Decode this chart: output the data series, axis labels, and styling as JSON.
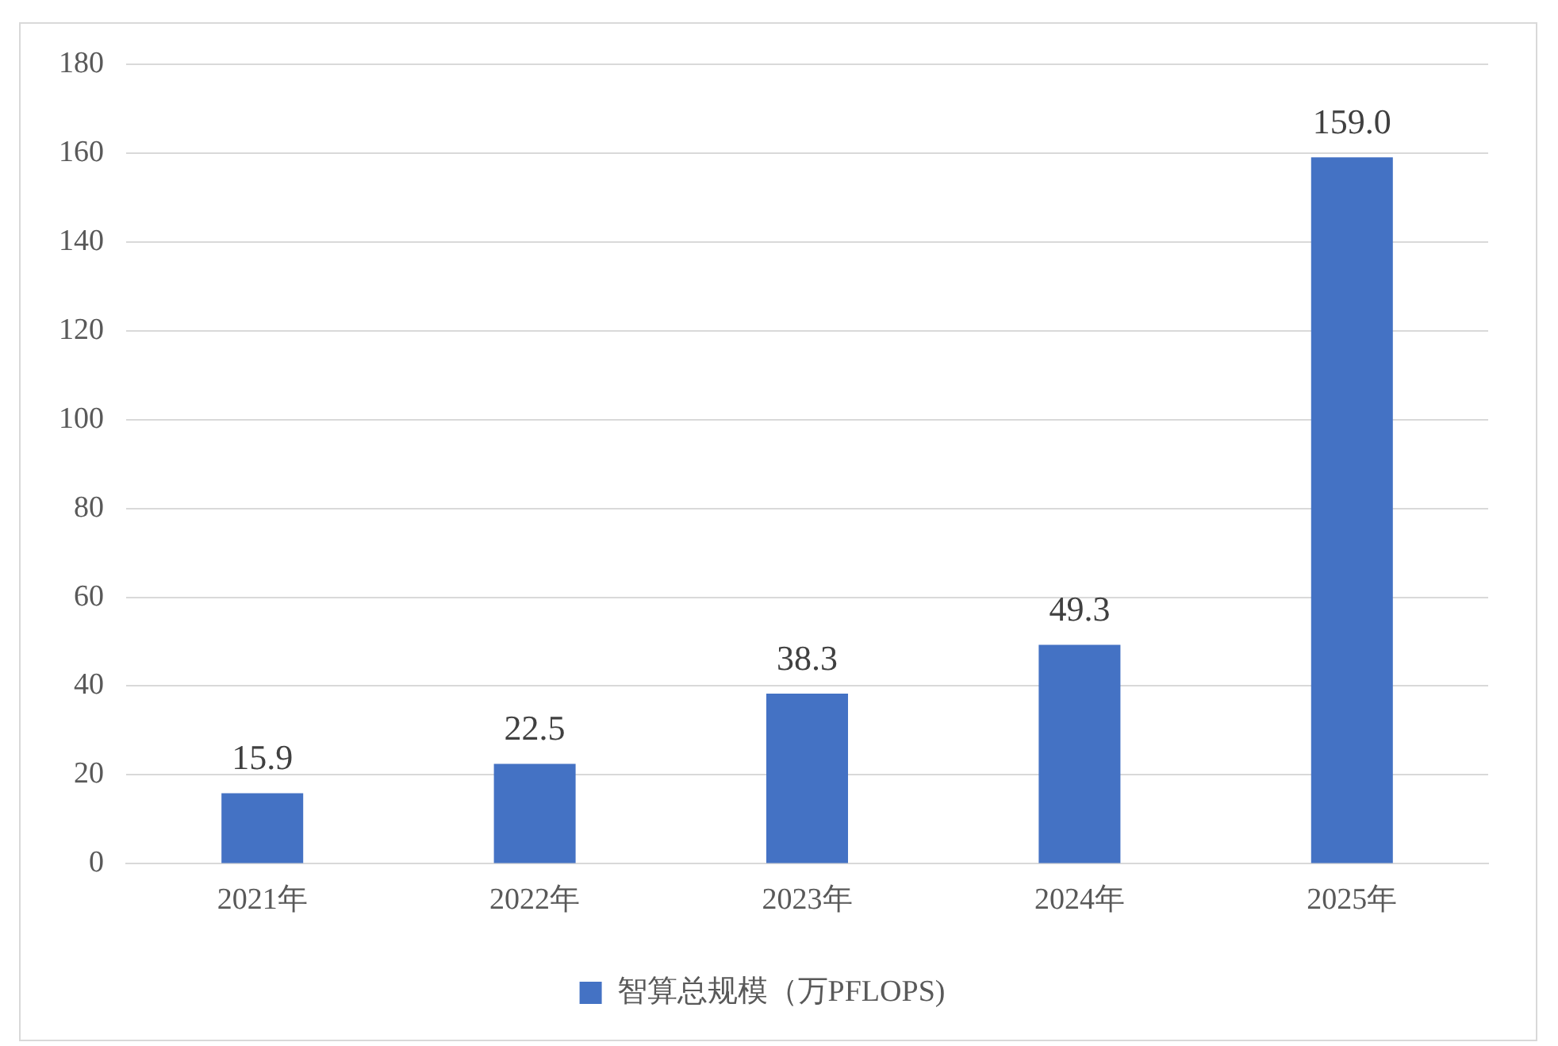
{
  "chart_data": {
    "type": "bar",
    "categories": [
      "2021年",
      "2022年",
      "2023年",
      "2024年",
      "2025年"
    ],
    "series": [
      {
        "name": "智算总规模（万PFLOPS)",
        "color": "#4472c4",
        "values": [
          15.9,
          22.5,
          38.3,
          49.3,
          159.0
        ]
      }
    ],
    "value_labels": [
      "15.9",
      "22.5",
      "38.3",
      "49.3",
      "159.0"
    ],
    "ylim": [
      0,
      180
    ],
    "yticks": [
      0,
      20,
      40,
      60,
      80,
      100,
      120,
      140,
      160,
      180
    ],
    "grid": "y",
    "legend": "bottom"
  }
}
